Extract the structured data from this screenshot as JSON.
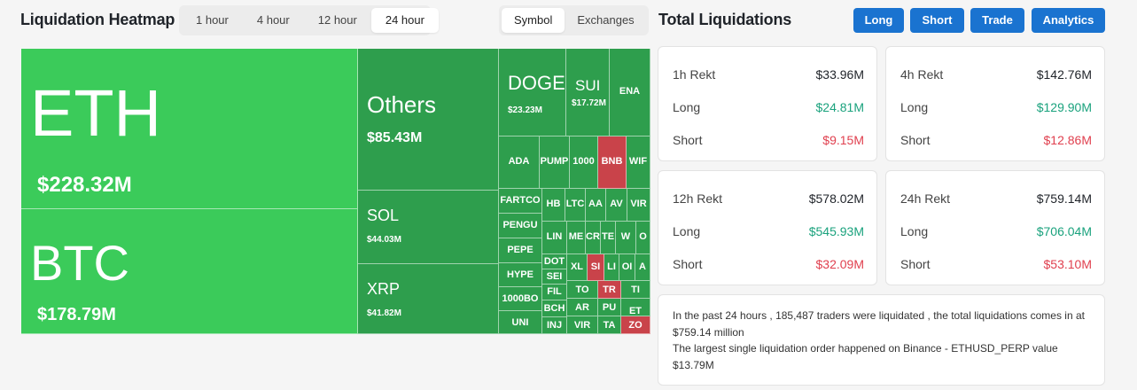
{
  "header": {
    "title": "Liquidation Heatmap",
    "time_tabs": [
      "1 hour",
      "4 hour",
      "12 hour",
      "24 hour"
    ],
    "time_active": "24 hour",
    "view_tabs": [
      "Symbol",
      "Exchanges"
    ],
    "view_active": "Symbol"
  },
  "right_header": {
    "title": "Total Liquidations",
    "buttons": [
      "Long",
      "Short",
      "Trade",
      "Analytics"
    ]
  },
  "colors": {
    "bright_green": "#3bcb5a",
    "green": "#2e9e4d",
    "red": "#c9434a",
    "positive": "#1aa27d",
    "negative": "#e0404f",
    "accent": "#1a73d0"
  },
  "heatmap": {
    "tiles": [
      {
        "symbol": "ETH",
        "value": "$228.32M"
      },
      {
        "symbol": "BTC",
        "value": "$178.79M"
      },
      {
        "symbol": "Others",
        "value": "$85.43M"
      },
      {
        "symbol": "SOL",
        "value": "$44.03M"
      },
      {
        "symbol": "XRP",
        "value": "$41.82M"
      },
      {
        "symbol": "DOGE",
        "value": "$23.23M"
      },
      {
        "symbol": "SUI",
        "value": "$17.72M"
      },
      {
        "symbol": "ENA",
        "value": ""
      },
      {
        "symbol": "ADA",
        "value": ""
      },
      {
        "symbol": "PUMP",
        "value": ""
      },
      {
        "symbol": "1000",
        "value": ""
      },
      {
        "symbol": "BNB",
        "value": ""
      },
      {
        "symbol": "WIF",
        "value": ""
      },
      {
        "symbol": "FARTCO",
        "value": ""
      },
      {
        "symbol": "PENGU",
        "value": ""
      },
      {
        "symbol": "PEPE",
        "value": ""
      },
      {
        "symbol": "HYPE",
        "value": ""
      },
      {
        "symbol": "1000BO",
        "value": ""
      },
      {
        "symbol": "UNI",
        "value": ""
      },
      {
        "symbol": "HB",
        "value": ""
      },
      {
        "symbol": "LTC",
        "value": ""
      },
      {
        "symbol": "AA",
        "value": ""
      },
      {
        "symbol": "AV",
        "value": ""
      },
      {
        "symbol": "VIR",
        "value": ""
      },
      {
        "symbol": "LIN",
        "value": ""
      },
      {
        "symbol": "ME",
        "value": ""
      },
      {
        "symbol": "CR",
        "value": ""
      },
      {
        "symbol": "TE",
        "value": ""
      },
      {
        "symbol": "W",
        "value": ""
      },
      {
        "symbol": "O",
        "value": ""
      },
      {
        "symbol": "DOT",
        "value": ""
      },
      {
        "symbol": "SEI",
        "value": ""
      },
      {
        "symbol": "FIL",
        "value": ""
      },
      {
        "symbol": "BCH",
        "value": ""
      },
      {
        "symbol": "INJ",
        "value": ""
      },
      {
        "symbol": "XL",
        "value": ""
      },
      {
        "symbol": "SI",
        "value": ""
      },
      {
        "symbol": "LI",
        "value": ""
      },
      {
        "symbol": "OI",
        "value": ""
      },
      {
        "symbol": "A",
        "value": ""
      },
      {
        "symbol": "TO",
        "value": ""
      },
      {
        "symbol": "TR",
        "value": ""
      },
      {
        "symbol": "TI",
        "value": ""
      },
      {
        "symbol": "AR",
        "value": ""
      },
      {
        "symbol": "PU",
        "value": ""
      },
      {
        "symbol": "ET",
        "value": ""
      },
      {
        "symbol": "VIR",
        "value": ""
      },
      {
        "symbol": "TA",
        "value": ""
      },
      {
        "symbol": "ZO",
        "value": ""
      }
    ]
  },
  "rekt_cards": [
    {
      "label": "1h Rekt",
      "total": "$33.96M",
      "long_label": "Long",
      "long": "$24.81M",
      "short_label": "Short",
      "short": "$9.15M"
    },
    {
      "label": "4h Rekt",
      "total": "$142.76M",
      "long_label": "Long",
      "long": "$129.90M",
      "short_label": "Short",
      "short": "$12.86M"
    },
    {
      "label": "12h Rekt",
      "total": "$578.02M",
      "long_label": "Long",
      "long": "$545.93M",
      "short_label": "Short",
      "short": "$32.09M"
    },
    {
      "label": "24h Rekt",
      "total": "$759.14M",
      "long_label": "Long",
      "long": "$706.04M",
      "short_label": "Short",
      "short": "$53.10M"
    }
  ],
  "summary": {
    "line1": "In the past 24 hours , 185,487 traders were liquidated , the total liquidations comes in at $759.14 million",
    "line2": "The largest single liquidation order happened on Binance - ETHUSD_PERP value $13.79M"
  }
}
